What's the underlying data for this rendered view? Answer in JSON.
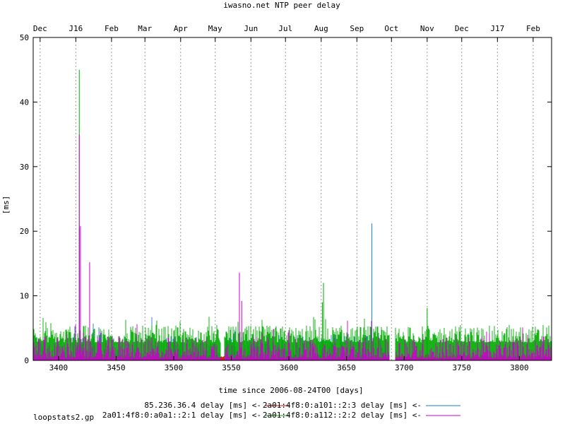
{
  "chart_data": {
    "type": "line",
    "title": "iwasno.net NTP peer delay",
    "xlabel": "time since 2006-08-24T00 [days]",
    "ylabel": "[ms]",
    "footer": "loopstats2.gp",
    "xlim": [
      3378,
      3828
    ],
    "ylim": [
      0,
      50
    ],
    "x_ticks": [
      3400,
      3450,
      3500,
      3550,
      3600,
      3650,
      3700,
      3750,
      3800
    ],
    "y_ticks": [
      0,
      10,
      20,
      30,
      40,
      50
    ],
    "top_axis": {
      "labels": [
        "Dec",
        "J16",
        "Feb",
        "Mar",
        "Apr",
        "May",
        "Jun",
        "Jul",
        "Aug",
        "Sep",
        "Oct",
        "Nov",
        "Dec",
        "J17",
        "Feb"
      ],
      "x": [
        3384,
        3415,
        3446,
        3475,
        3506,
        3536,
        3567,
        3597,
        3628,
        3659,
        3689,
        3720,
        3750,
        3781,
        3812
      ]
    },
    "grid": "vertical dotted at month boundaries",
    "legend_position": "bottom-center",
    "series": [
      {
        "name": "85.236.36.4 delay [ms] <-",
        "color": "#dd0000",
        "segments": [
          [
            3378,
            3687
          ],
          [
            3692,
            3828
          ]
        ],
        "base": 0.5,
        "noise": 0.2,
        "spikes": []
      },
      {
        "name": "2a01:4f8:0:a101::2:3 delay [ms] <-",
        "color": "#1a80c0",
        "segments": [
          [
            3378,
            3541
          ],
          [
            3544,
            3687
          ]
        ],
        "base": 0.4,
        "noise": 1.8,
        "spikes": [
          [
            3418,
            20.5
          ],
          [
            3672,
            21.2
          ]
        ]
      },
      {
        "name": "2a01:4f8:0:a0a1::2:1 delay [ms] <-",
        "color": "#00aa00",
        "segments": [
          [
            3378,
            3541
          ],
          [
            3544,
            3687
          ],
          [
            3692,
            3828
          ]
        ],
        "base": 2.8,
        "noise": 1.3,
        "spikes": [
          [
            3418,
            45.0
          ],
          [
            3630,
            12.0
          ],
          [
            3629,
            9.0
          ],
          [
            3720,
            8.1
          ]
        ]
      },
      {
        "name": "2a01:4f8:0:a112::2:2 delay [ms] <-",
        "color": "#cc00cc",
        "segments": [
          [
            3378,
            3541
          ],
          [
            3544,
            3687
          ],
          [
            3692,
            3828
          ]
        ],
        "base": 0.3,
        "noise": 1.7,
        "spikes": [
          [
            3418,
            35.0
          ],
          [
            3419,
            20.8
          ],
          [
            3427,
            15.2
          ],
          [
            3557,
            13.6
          ],
          [
            3559,
            9.2
          ],
          [
            3826,
            1.8
          ]
        ]
      }
    ]
  }
}
